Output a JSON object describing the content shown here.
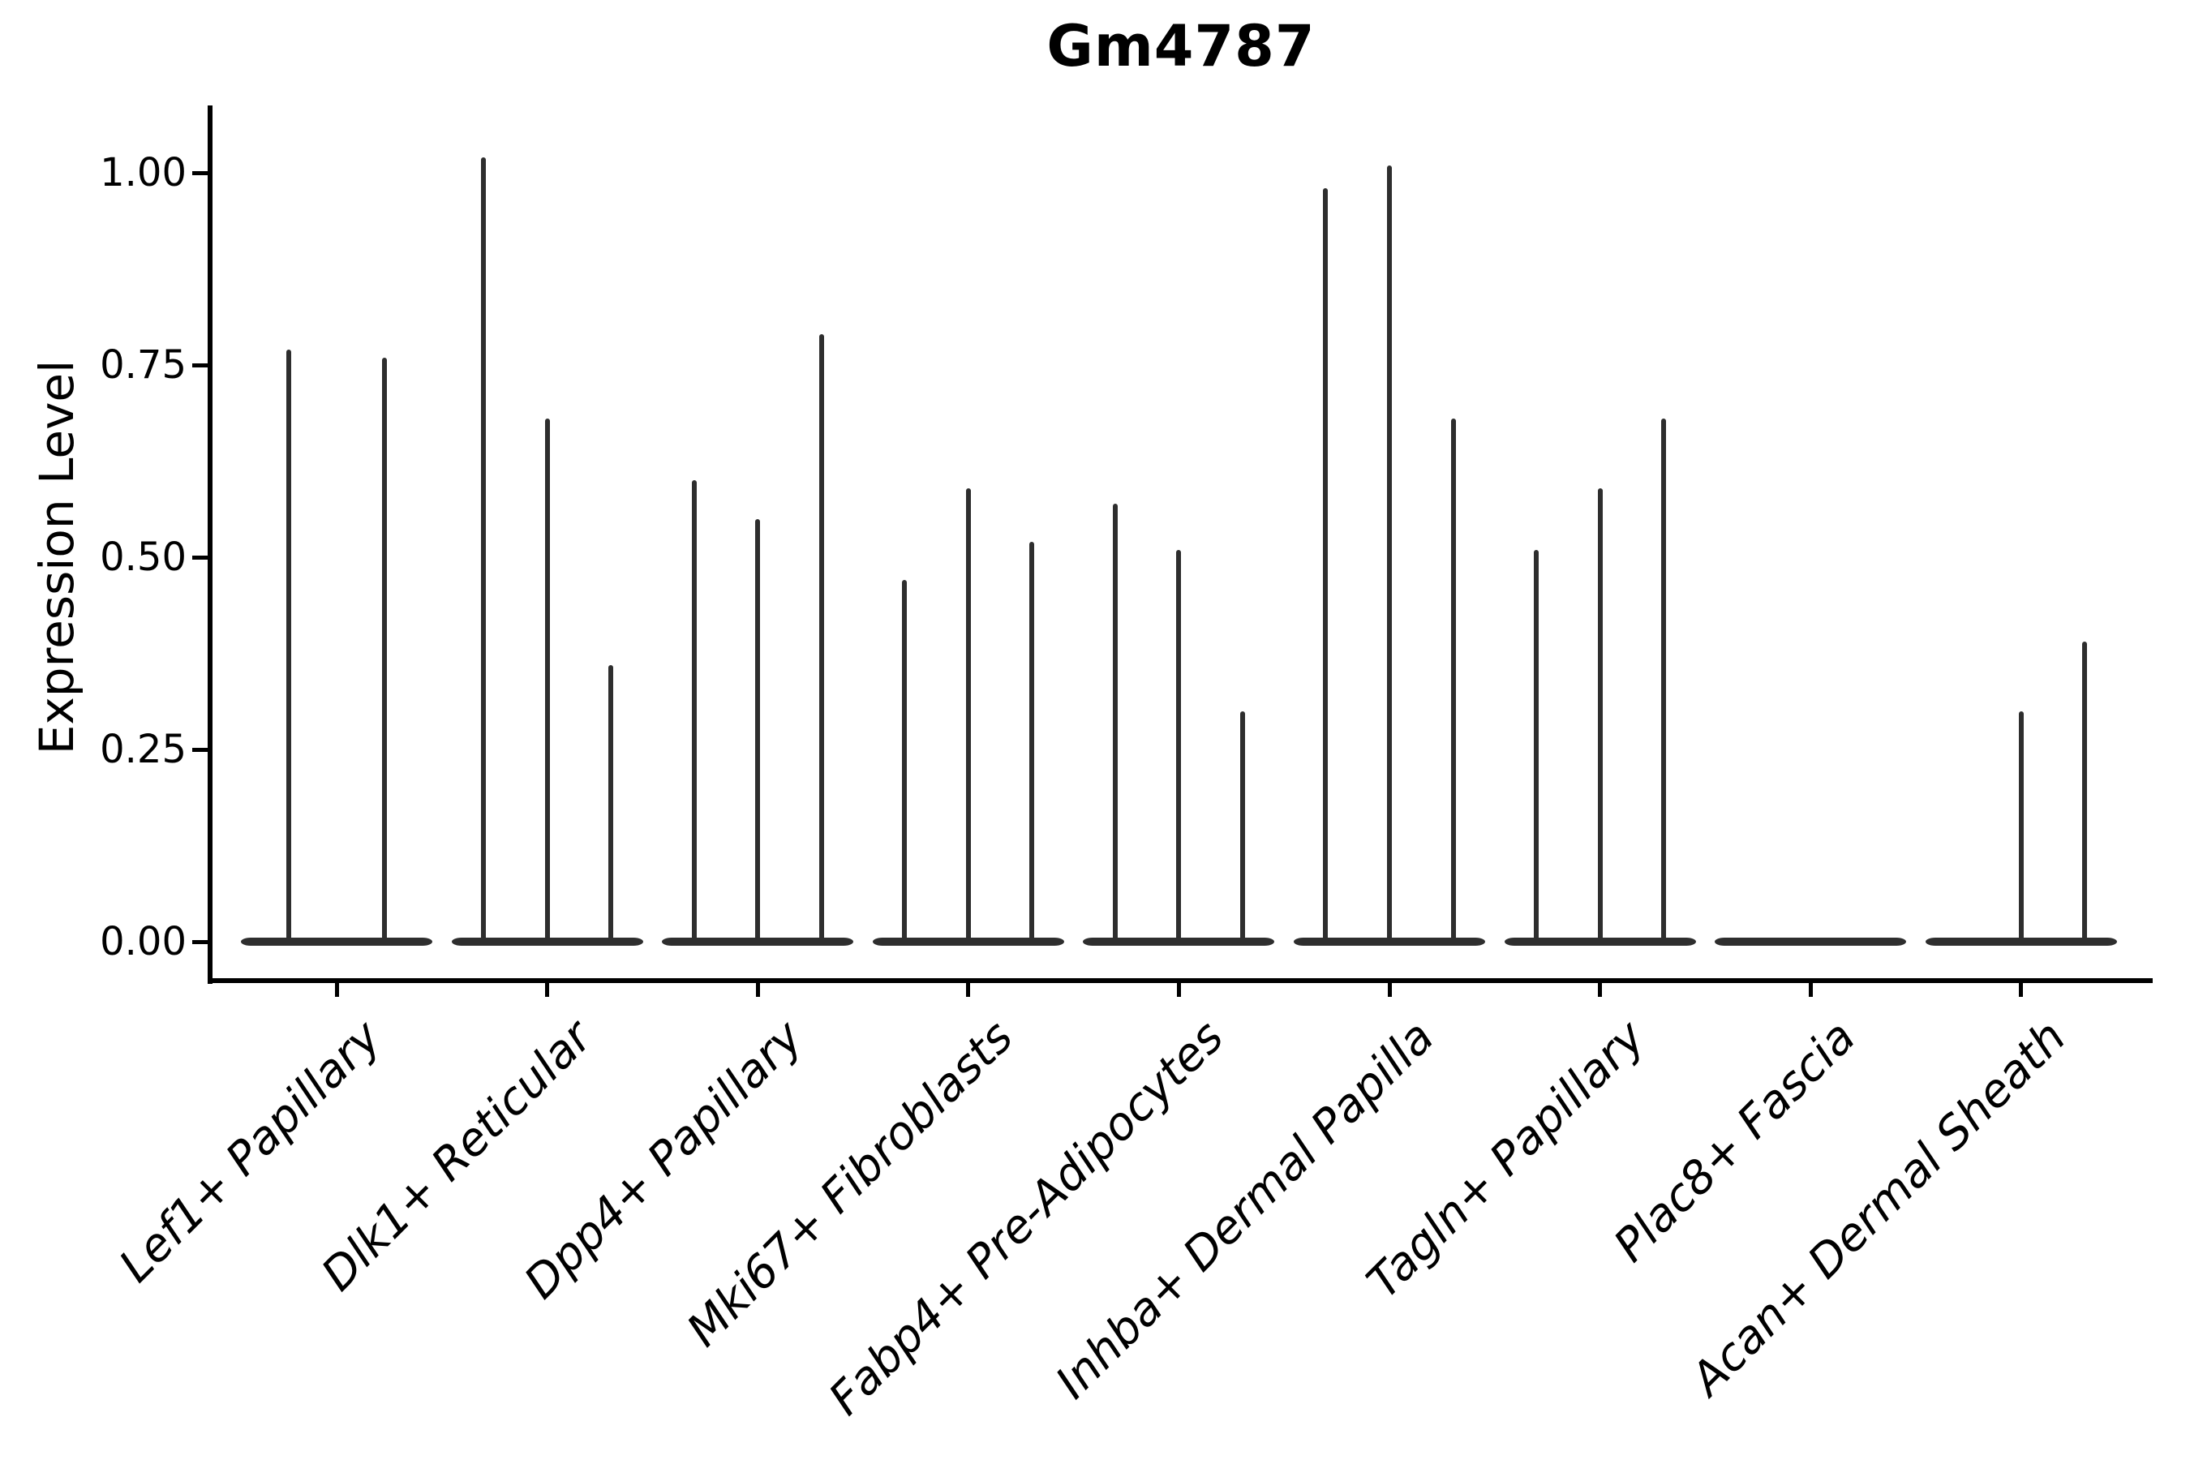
{
  "title": "Gm4787",
  "y_axis": {
    "label": "Expression Level",
    "tick_labels": [
      "0.00",
      "0.25",
      "0.50",
      "0.75",
      "1.00"
    ]
  },
  "x_axis": {
    "tick_labels": [
      "Lef1+ Papillary",
      "Dlk1+ Reticular",
      "Dpp4+ Papillary",
      "Mki67+ Fibroblasts",
      "Fabp4+ Pre-Adipocytes",
      "Inhba+ Dermal Papilla",
      "Tagln+ Papillary",
      "Plac8+ Fascia",
      "Acan+ Dermal Sheath"
    ]
  },
  "chart_data": {
    "type": "violin",
    "title": "Gm4787",
    "xlabel": "",
    "ylabel": "Expression Level",
    "ylim": [
      0,
      1.08
    ],
    "yticks": [
      0.0,
      0.25,
      0.5,
      0.75,
      1.0
    ],
    "grid": false,
    "legend_position": "none",
    "categories": [
      "Lef1+ Papillary",
      "Dlk1+ Reticular",
      "Dpp4+ Papillary",
      "Mki67+ Fibroblasts",
      "Fabp4+ Pre-Adipocytes",
      "Inhba+ Dermal Papilla",
      "Tagln+ Papillary",
      "Plac8+ Fascia",
      "Acan+ Dermal Sheath"
    ],
    "series": [
      {
        "category": "Lef1+ Papillary",
        "violin_maxima": [
          0.77,
          0.76
        ]
      },
      {
        "category": "Dlk1+ Reticular",
        "violin_maxima": [
          1.02,
          0.68,
          0.36
        ]
      },
      {
        "category": "Dpp4+ Papillary",
        "violin_maxima": [
          0.6,
          0.55,
          0.79
        ]
      },
      {
        "category": "Mki67+ Fibroblasts",
        "violin_maxima": [
          0.47,
          0.59,
          0.52
        ]
      },
      {
        "category": "Fabp4+ Pre-Adipocytes",
        "violin_maxima": [
          0.57,
          0.51,
          0.3
        ]
      },
      {
        "category": "Inhba+ Dermal Papilla",
        "violin_maxima": [
          0.98,
          1.01,
          0.68
        ]
      },
      {
        "category": "Tagln+ Papillary",
        "violin_maxima": [
          0.51,
          0.59,
          0.68
        ]
      },
      {
        "category": "Plac8+ Fascia",
        "violin_maxima": [
          0,
          0,
          0
        ]
      },
      {
        "category": "Acan+ Dermal Sheath",
        "violin_maxima": [
          0,
          0.3,
          0.39
        ]
      }
    ],
    "colors": {
      "violin_fill": "#2e2e2e",
      "axis": "#000000",
      "background": "#ffffff"
    }
  }
}
